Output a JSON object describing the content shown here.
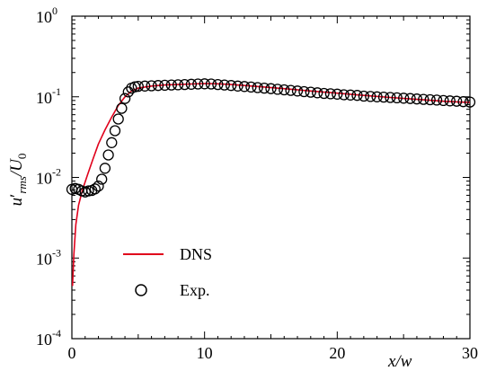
{
  "chart_data": {
    "type": "line",
    "title": "",
    "xlabel": "x/w",
    "ylabel": {
      "main": "u",
      "prime": "′",
      "sub": "rms",
      "slash": "/U",
      "sub2": "0"
    },
    "xlim": [
      0,
      30
    ],
    "ylim": [
      0.0001,
      1
    ],
    "yscale": "log",
    "grid": false,
    "legend_position": "lower-left",
    "x_ticks": [
      {
        "value": 0,
        "label": "0"
      },
      {
        "value": 10,
        "label": "10"
      },
      {
        "value": 20,
        "label": "20"
      },
      {
        "value": 30,
        "label": "30"
      }
    ],
    "y_ticks": [
      {
        "value": 1,
        "base": "10",
        "exp": "0"
      },
      {
        "value": 0.1,
        "base": "10",
        "exp": "-1"
      },
      {
        "value": 0.01,
        "base": "10",
        "exp": "-2"
      },
      {
        "value": 0.001,
        "base": "10",
        "exp": "-3"
      },
      {
        "value": 0.0001,
        "base": "10",
        "exp": "-4"
      }
    ],
    "series": [
      {
        "name": "DNS",
        "style": "line",
        "color": "#e0001b",
        "x": [
          0.05,
          0.15,
          0.3,
          0.5,
          0.8,
          1.2,
          1.6,
          2.0,
          2.5,
          3.0,
          3.5,
          4.0,
          4.5,
          5.0,
          6.0,
          7.0,
          8.0,
          9.0,
          10.0,
          11.0,
          12.0,
          14.0,
          16.0,
          18.0,
          20.0,
          22.0,
          24.0,
          26.0,
          28.0,
          30.0
        ],
        "y": [
          0.00045,
          0.0011,
          0.0026,
          0.0045,
          0.007,
          0.011,
          0.017,
          0.026,
          0.039,
          0.056,
          0.078,
          0.1,
          0.118,
          0.128,
          0.136,
          0.14,
          0.142,
          0.144,
          0.146,
          0.145,
          0.142,
          0.134,
          0.126,
          0.118,
          0.111,
          0.104,
          0.098,
          0.093,
          0.088,
          0.085
        ]
      },
      {
        "name": "Exp.",
        "style": "markers",
        "marker": "open-circle",
        "color": "#000000",
        "x": [
          0.0,
          0.25,
          0.5,
          0.75,
          1.0,
          1.25,
          1.5,
          1.75,
          2.0,
          2.25,
          2.5,
          2.75,
          3.0,
          3.25,
          3.5,
          3.75,
          4.0,
          4.25,
          4.5,
          4.75,
          5.0,
          5.5,
          6.0,
          6.5,
          7.0,
          7.5,
          8.0,
          8.5,
          9.0,
          9.5,
          10.0,
          10.5,
          11.0,
          11.5,
          12.0,
          12.5,
          13.0,
          13.5,
          14.0,
          14.5,
          15.0,
          15.5,
          16.0,
          16.5,
          17.0,
          17.5,
          18.0,
          18.5,
          19.0,
          19.5,
          20.0,
          20.5,
          21.0,
          21.5,
          22.0,
          22.5,
          23.0,
          23.5,
          24.0,
          24.5,
          25.0,
          25.5,
          26.0,
          26.5,
          27.0,
          27.5,
          28.0,
          28.5,
          29.0,
          29.5,
          30.0
        ],
        "y": [
          0.0071,
          0.0073,
          0.0071,
          0.0068,
          0.0066,
          0.0068,
          0.0069,
          0.0072,
          0.0078,
          0.0095,
          0.013,
          0.019,
          0.027,
          0.038,
          0.053,
          0.072,
          0.095,
          0.115,
          0.128,
          0.133,
          0.135,
          0.136,
          0.137,
          0.138,
          0.139,
          0.14,
          0.141,
          0.142,
          0.143,
          0.144,
          0.145,
          0.144,
          0.142,
          0.14,
          0.138,
          0.136,
          0.134,
          0.132,
          0.13,
          0.128,
          0.126,
          0.124,
          0.122,
          0.12,
          0.118,
          0.116,
          0.114,
          0.112,
          0.11,
          0.109,
          0.108,
          0.106,
          0.105,
          0.104,
          0.102,
          0.101,
          0.1,
          0.099,
          0.098,
          0.097,
          0.096,
          0.095,
          0.094,
          0.093,
          0.092,
          0.091,
          0.09,
          0.089,
          0.088,
          0.087,
          0.086
        ]
      }
    ]
  }
}
